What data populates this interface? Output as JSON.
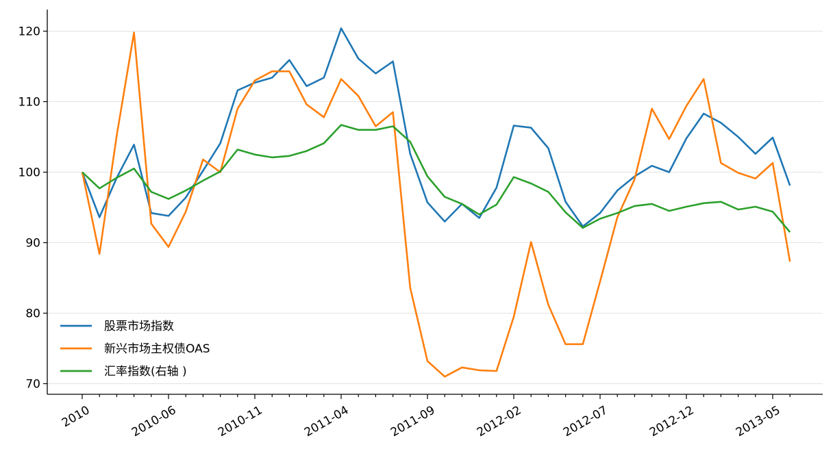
{
  "chart_data": {
    "type": "line",
    "title": "",
    "xlabel": "",
    "ylabel": "",
    "ylim": [
      68.5,
      123
    ],
    "yticks": [
      70,
      80,
      90,
      100,
      110,
      120
    ],
    "grid": "horizontal",
    "legend_position": "lower-left",
    "x_tick_labels": [
      "2010",
      "2010-06",
      "2010-11",
      "2011-04",
      "2011-09",
      "2012-02",
      "2012-07",
      "2012-12",
      "2013-05"
    ],
    "x": [
      "2010-01",
      "2010-02",
      "2010-03",
      "2010-04",
      "2010-05",
      "2010-06",
      "2010-07",
      "2010-08",
      "2010-09",
      "2010-10",
      "2010-11",
      "2010-12",
      "2011-01",
      "2011-02",
      "2011-03",
      "2011-04",
      "2011-05",
      "2011-06",
      "2011-07",
      "2011-08",
      "2011-09",
      "2011-10",
      "2011-11",
      "2011-12",
      "2012-01",
      "2012-02",
      "2012-03",
      "2012-04",
      "2012-05",
      "2012-06",
      "2012-07",
      "2012-08",
      "2012-09",
      "2012-10",
      "2012-11",
      "2012-12",
      "2013-01",
      "2013-02",
      "2013-03",
      "2013-04",
      "2013-05",
      "2013-06"
    ],
    "series": [
      {
        "name": "股票市场指数",
        "color": "#1f77b4",
        "values": [
          100,
          93.6,
          99.2,
          103.9,
          94.2,
          93.8,
          96.4,
          100.2,
          104.1,
          111.6,
          112.7,
          113.4,
          115.9,
          112.2,
          113.4,
          120.4,
          116.1,
          114.0,
          115.7,
          102.6,
          95.7,
          93.0,
          95.5,
          93.5,
          97.8,
          106.6,
          106.3,
          103.4,
          95.8,
          92.3,
          94.2,
          97.4,
          99.4,
          100.9,
          100.0,
          104.8,
          108.3,
          107.0,
          105.0,
          102.6,
          104.9,
          98.1
        ]
      },
      {
        "name": "新兴市场主权债OAS",
        "color": "#ff7f0e",
        "values": [
          100,
          88.4,
          105.2,
          119.8,
          92.7,
          89.4,
          94.4,
          101.8,
          100.0,
          109.0,
          113.0,
          114.3,
          114.3,
          109.6,
          107.8,
          113.2,
          110.8,
          106.5,
          108.5,
          83.6,
          73.2,
          71.0,
          72.3,
          71.9,
          71.8,
          79.5,
          90.1,
          81.2,
          75.6,
          75.6,
          84.5,
          93.6,
          99.0,
          109.0,
          104.7,
          109.4,
          113.2,
          101.3,
          99.9,
          99.1,
          101.3,
          87.3
        ]
      },
      {
        "name": "汇率指数(右轴 )",
        "color": "#2ca02c",
        "values": [
          100,
          97.7,
          99.2,
          100.5,
          97.2,
          96.2,
          97.4,
          98.8,
          100.1,
          103.2,
          102.5,
          102.1,
          102.3,
          103.0,
          104.1,
          106.7,
          106.0,
          106.0,
          106.5,
          104.3,
          99.4,
          96.5,
          95.5,
          94.0,
          95.4,
          99.3,
          98.4,
          97.2,
          94.3,
          92.1,
          93.4,
          94.2,
          95.2,
          95.5,
          94.5,
          95.1,
          95.6,
          95.8,
          94.7,
          95.1,
          94.4,
          91.5
        ]
      }
    ]
  }
}
